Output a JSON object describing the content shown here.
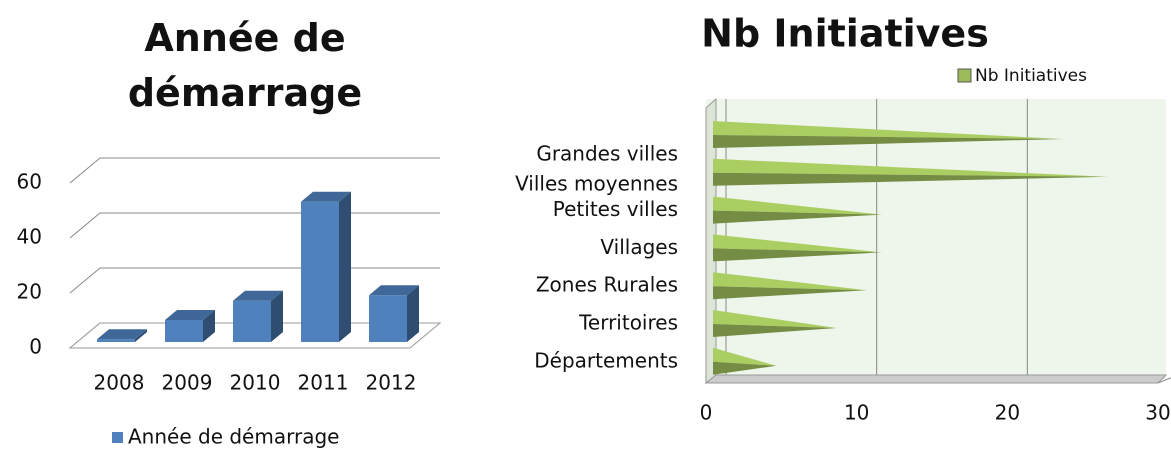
{
  "charts": [
    {
      "type": "bar3d",
      "title": "Année de démarrage",
      "categories": [
        "2008",
        "2009",
        "2010",
        "2011",
        "2012"
      ],
      "series": [
        {
          "name": "Année de démarrage",
          "color": "#4f81bd",
          "values": [
            1,
            8,
            15,
            51,
            17
          ]
        }
      ],
      "ylim": [
        0,
        60
      ],
      "yticks": [
        0,
        20,
        40,
        60
      ],
      "grid": true,
      "legend": "bottom"
    },
    {
      "type": "cone",
      "title": "Nb Initiatives",
      "categories": [
        "Grandes villes",
        "Villes moyennes",
        "Petites villes",
        "Villages",
        "Zones Rurales",
        "Territoires",
        "Départements"
      ],
      "series": [
        {
          "name": "Nb Initiatives",
          "color": "#9bbb59",
          "values": [
            23,
            26,
            11,
            11,
            10,
            8,
            4
          ]
        }
      ],
      "xlim": [
        0,
        30
      ],
      "xticks": [
        0,
        10,
        20,
        30
      ],
      "grid": true,
      "legend": "top-right"
    }
  ]
}
